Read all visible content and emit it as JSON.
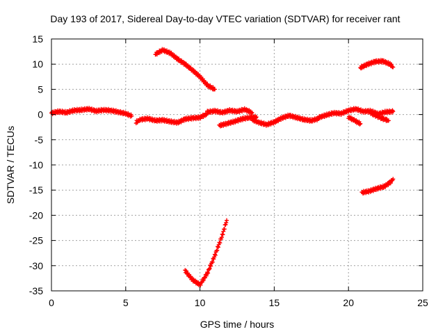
{
  "chart_data": {
    "type": "scatter",
    "title": "Day 193 of 2017, Sidereal Day-to-day VTEC variation (SDTVAR) for receiver rant",
    "xlabel": "GPS time / hours",
    "ylabel": "SDTVAR / TECUs",
    "xlim": [
      0,
      25
    ],
    "ylim": [
      -35,
      15
    ],
    "xticks": [
      0,
      5,
      10,
      15,
      20,
      25
    ],
    "yticks": [
      -35,
      -30,
      -25,
      -20,
      -15,
      -10,
      -5,
      0,
      5,
      10,
      15
    ],
    "grid": true,
    "legend": "none",
    "marker": "plus",
    "series_color": "#ff0000",
    "series": [
      {
        "segments": [
          {
            "x": [
              0.0,
              0.5,
              1.0,
              1.5,
              2.0,
              2.5,
              3.0,
              3.5,
              4.0,
              4.5,
              5.0,
              5.4
            ],
            "y": [
              0.3,
              0.6,
              0.4,
              0.8,
              0.9,
              1.1,
              0.7,
              0.9,
              0.8,
              0.5,
              0.2,
              -0.3
            ]
          },
          {
            "x": [
              5.7,
              6.0,
              6.5,
              7.0,
              7.5,
              8.0,
              8.5,
              9.0,
              9.5,
              10.0,
              10.5
            ],
            "y": [
              -1.5,
              -1.0,
              -0.8,
              -1.2,
              -1.1,
              -1.4,
              -1.6,
              -0.9,
              -0.7,
              -0.6,
              0.2
            ]
          },
          {
            "x": [
              10.5,
              11.0,
              11.5,
              12.0,
              12.5,
              13.0,
              13.5
            ],
            "y": [
              0.5,
              0.7,
              0.4,
              0.8,
              0.6,
              1.0,
              0.4
            ]
          },
          {
            "x": [
              11.3,
              11.8,
              12.3,
              12.8,
              13.3,
              13.8
            ],
            "y": [
              -2.2,
              -1.8,
              -1.4,
              -0.9,
              -0.6,
              -0.5
            ]
          },
          {
            "x": [
              13.5,
              14.0,
              14.5,
              15.0,
              15.5,
              16.0,
              16.5,
              17.0,
              17.5,
              18.0
            ],
            "y": [
              -1.0,
              -1.6,
              -2.0,
              -1.5,
              -0.7,
              -0.2,
              -0.6,
              -1.0,
              -1.2,
              -0.8
            ]
          },
          {
            "x": [
              18.0,
              18.5,
              19.0,
              19.5,
              20.0,
              20.5,
              21.0,
              21.5,
              22.0,
              22.5,
              23.0
            ],
            "y": [
              -0.6,
              -0.1,
              0.3,
              0.2,
              0.8,
              1.1,
              0.6,
              0.7,
              0.1,
              0.5,
              0.6
            ]
          },
          {
            "x": [
              20.0,
              20.4,
              20.8
            ],
            "y": [
              -0.5,
              -1.2,
              -1.8
            ]
          },
          {
            "x": [
              21.5,
              21.9,
              22.3,
              22.7
            ],
            "y": [
              0.3,
              -0.3,
              -0.8,
              -1.2
            ]
          },
          {
            "x": [
              7.0,
              7.5,
              8.0,
              8.5,
              9.0,
              9.5,
              10.0,
              10.5,
              11.0
            ],
            "y": [
              12.0,
              12.8,
              12.2,
              11.0,
              10.0,
              8.8,
              7.5,
              5.8,
              5.0
            ]
          },
          {
            "x": [
              9.0,
              9.5,
              10.0,
              10.5,
              11.0,
              11.5,
              11.8
            ],
            "y": [
              -31.0,
              -32.8,
              -33.8,
              -31.5,
              -28.0,
              -24.0,
              -21.0
            ]
          },
          {
            "x": [
              20.8,
              21.3,
              21.8,
              22.3,
              22.8,
              23.0
            ],
            "y": [
              9.3,
              10.0,
              10.5,
              10.6,
              10.0,
              9.4
            ]
          },
          {
            "x": [
              20.9,
              21.4,
              21.9,
              22.4,
              22.8,
              23.0
            ],
            "y": [
              -15.5,
              -15.2,
              -14.7,
              -14.3,
              -13.5,
              -12.8
            ]
          }
        ]
      }
    ]
  }
}
